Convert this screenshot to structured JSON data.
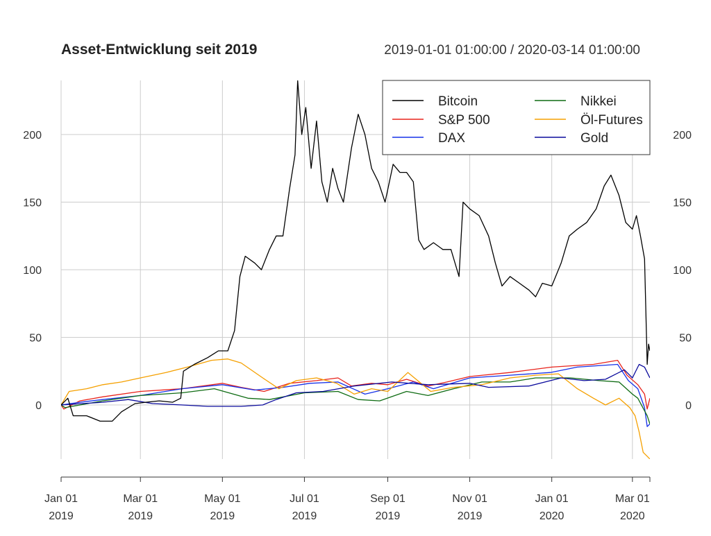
{
  "chart_data": {
    "type": "line",
    "title": "Asset-Entwicklung seit 2019",
    "subtitle": "2019-01-01 01:00:00 / 2020-03-14 01:00:00",
    "xlabel": "",
    "ylabel": "",
    "xlim": [
      "2019-01-01",
      "2020-03-14"
    ],
    "ylim": [
      -40,
      240
    ],
    "y_ticks": [
      0,
      50,
      100,
      150,
      200
    ],
    "y_tick_labels": [
      "0",
      "50",
      "100",
      "150",
      "200"
    ],
    "x_ticks": [
      {
        "date": "2019-01-01",
        "line1": "Jan 01",
        "line2": "2019"
      },
      {
        "date": "2019-03-01",
        "line1": "Mar 01",
        "line2": "2019"
      },
      {
        "date": "2019-05-01",
        "line1": "May 01",
        "line2": "2019"
      },
      {
        "date": "2019-07-01",
        "line1": "Jul 01",
        "line2": "2019"
      },
      {
        "date": "2019-09-01",
        "line1": "Sep 01",
        "line2": "2019"
      },
      {
        "date": "2019-11-01",
        "line1": "Nov 01",
        "line2": "2019"
      },
      {
        "date": "2020-01-01",
        "line1": "Jan 01",
        "line2": "2020"
      },
      {
        "date": "2020-03-01",
        "line1": "Mar 01",
        "line2": "2020"
      }
    ],
    "grid": true,
    "legend_position": "top-right",
    "series": [
      {
        "name": "Bitcoin",
        "color": "#000000",
        "points": [
          [
            "2019-01-01",
            0
          ],
          [
            "2019-01-06",
            5
          ],
          [
            "2019-01-10",
            -8
          ],
          [
            "2019-01-20",
            -8
          ],
          [
            "2019-01-30",
            -12
          ],
          [
            "2019-02-08",
            -12
          ],
          [
            "2019-02-15",
            -5
          ],
          [
            "2019-02-25",
            1
          ],
          [
            "2019-03-05",
            2
          ],
          [
            "2019-03-15",
            3
          ],
          [
            "2019-03-25",
            2
          ],
          [
            "2019-03-31",
            5
          ],
          [
            "2019-04-02",
            25
          ],
          [
            "2019-04-10",
            30
          ],
          [
            "2019-04-20",
            35
          ],
          [
            "2019-04-28",
            40
          ],
          [
            "2019-05-05",
            40
          ],
          [
            "2019-05-10",
            55
          ],
          [
            "2019-05-14",
            95
          ],
          [
            "2019-05-18",
            110
          ],
          [
            "2019-05-25",
            105
          ],
          [
            "2019-05-30",
            100
          ],
          [
            "2019-06-05",
            115
          ],
          [
            "2019-06-10",
            125
          ],
          [
            "2019-06-15",
            125
          ],
          [
            "2019-06-20",
            160
          ],
          [
            "2019-06-24",
            185
          ],
          [
            "2019-06-26",
            240
          ],
          [
            "2019-06-29",
            200
          ],
          [
            "2019-07-02",
            220
          ],
          [
            "2019-07-06",
            175
          ],
          [
            "2019-07-10",
            210
          ],
          [
            "2019-07-14",
            165
          ],
          [
            "2019-07-18",
            150
          ],
          [
            "2019-07-22",
            175
          ],
          [
            "2019-07-26",
            160
          ],
          [
            "2019-07-30",
            150
          ],
          [
            "2019-08-05",
            190
          ],
          [
            "2019-08-10",
            215
          ],
          [
            "2019-08-15",
            200
          ],
          [
            "2019-08-20",
            175
          ],
          [
            "2019-08-25",
            165
          ],
          [
            "2019-08-30",
            150
          ],
          [
            "2019-09-05",
            178
          ],
          [
            "2019-09-10",
            172
          ],
          [
            "2019-09-15",
            172
          ],
          [
            "2019-09-20",
            165
          ],
          [
            "2019-09-24",
            122
          ],
          [
            "2019-09-28",
            115
          ],
          [
            "2019-10-05",
            120
          ],
          [
            "2019-10-12",
            115
          ],
          [
            "2019-10-18",
            115
          ],
          [
            "2019-10-24",
            95
          ],
          [
            "2019-10-27",
            150
          ],
          [
            "2019-11-01",
            145
          ],
          [
            "2019-11-08",
            140
          ],
          [
            "2019-11-15",
            125
          ],
          [
            "2019-11-20",
            105
          ],
          [
            "2019-11-25",
            88
          ],
          [
            "2019-12-01",
            95
          ],
          [
            "2019-12-08",
            90
          ],
          [
            "2019-12-15",
            85
          ],
          [
            "2019-12-20",
            80
          ],
          [
            "2019-12-25",
            90
          ],
          [
            "2020-01-01",
            88
          ],
          [
            "2020-01-08",
            105
          ],
          [
            "2020-01-14",
            125
          ],
          [
            "2020-01-20",
            130
          ],
          [
            "2020-01-27",
            135
          ],
          [
            "2020-02-03",
            145
          ],
          [
            "2020-02-09",
            162
          ],
          [
            "2020-02-14",
            170
          ],
          [
            "2020-02-20",
            155
          ],
          [
            "2020-02-25",
            135
          ],
          [
            "2020-03-01",
            130
          ],
          [
            "2020-03-04",
            140
          ],
          [
            "2020-03-07",
            125
          ],
          [
            "2020-03-10",
            108
          ],
          [
            "2020-03-12",
            30
          ],
          [
            "2020-03-13",
            45
          ],
          [
            "2020-03-14",
            40
          ]
        ]
      },
      {
        "name": "S&P 500",
        "color": "#e8221a",
        "points": [
          [
            "2019-01-01",
            0
          ],
          [
            "2019-01-03",
            -3
          ],
          [
            "2019-01-15",
            3
          ],
          [
            "2019-02-01",
            6
          ],
          [
            "2019-03-01",
            10
          ],
          [
            "2019-04-01",
            12
          ],
          [
            "2019-05-01",
            16
          ],
          [
            "2019-05-15",
            13
          ],
          [
            "2019-06-01",
            10
          ],
          [
            "2019-06-20",
            16
          ],
          [
            "2019-07-10",
            18
          ],
          [
            "2019-07-26",
            20
          ],
          [
            "2019-08-05",
            14
          ],
          [
            "2019-08-20",
            16
          ],
          [
            "2019-09-01",
            15
          ],
          [
            "2019-09-15",
            19
          ],
          [
            "2019-10-01",
            14
          ],
          [
            "2019-10-15",
            17
          ],
          [
            "2019-11-01",
            21
          ],
          [
            "2019-12-01",
            24
          ],
          [
            "2020-01-01",
            28
          ],
          [
            "2020-02-01",
            30
          ],
          [
            "2020-02-19",
            33
          ],
          [
            "2020-02-26",
            22
          ],
          [
            "2020-03-05",
            15
          ],
          [
            "2020-03-10",
            8
          ],
          [
            "2020-03-12",
            -3
          ],
          [
            "2020-03-14",
            5
          ]
        ]
      },
      {
        "name": "DAX",
        "color": "#1530e8",
        "points": [
          [
            "2019-01-01",
            0
          ],
          [
            "2019-01-15",
            2
          ],
          [
            "2019-02-01",
            4
          ],
          [
            "2019-03-01",
            7
          ],
          [
            "2019-04-01",
            12
          ],
          [
            "2019-05-01",
            15
          ],
          [
            "2019-05-25",
            11
          ],
          [
            "2019-06-15",
            13
          ],
          [
            "2019-07-05",
            16
          ],
          [
            "2019-07-26",
            17
          ],
          [
            "2019-08-15",
            8
          ],
          [
            "2019-09-01",
            12
          ],
          [
            "2019-09-20",
            17
          ],
          [
            "2019-10-05",
            12
          ],
          [
            "2019-11-01",
            20
          ],
          [
            "2019-12-01",
            22
          ],
          [
            "2019-12-31",
            24
          ],
          [
            "2020-01-20",
            28
          ],
          [
            "2020-02-19",
            30
          ],
          [
            "2020-02-27",
            18
          ],
          [
            "2020-03-05",
            12
          ],
          [
            "2020-03-10",
            -2
          ],
          [
            "2020-03-12",
            -16
          ],
          [
            "2020-03-14",
            -14
          ]
        ]
      },
      {
        "name": "Nikkei",
        "color": "#0e6b12",
        "points": [
          [
            "2019-01-01",
            0
          ],
          [
            "2019-01-04",
            -2
          ],
          [
            "2019-02-01",
            3
          ],
          [
            "2019-03-01",
            7
          ],
          [
            "2019-04-01",
            9
          ],
          [
            "2019-04-25",
            12
          ],
          [
            "2019-05-20",
            5
          ],
          [
            "2019-06-05",
            4
          ],
          [
            "2019-07-01",
            9
          ],
          [
            "2019-07-26",
            10
          ],
          [
            "2019-08-10",
            4
          ],
          [
            "2019-08-26",
            3
          ],
          [
            "2019-09-15",
            10
          ],
          [
            "2019-10-01",
            7
          ],
          [
            "2019-10-20",
            12
          ],
          [
            "2019-11-10",
            17
          ],
          [
            "2019-12-01",
            17
          ],
          [
            "2019-12-20",
            20
          ],
          [
            "2020-01-15",
            20
          ],
          [
            "2020-02-05",
            18
          ],
          [
            "2020-02-20",
            17
          ],
          [
            "2020-03-01",
            8
          ],
          [
            "2020-03-05",
            5
          ],
          [
            "2020-03-12",
            -8
          ],
          [
            "2020-03-14",
            -14
          ]
        ]
      },
      {
        "name": "Öl-Futures",
        "color": "#f5a000",
        "points": [
          [
            "2019-01-01",
            0
          ],
          [
            "2019-01-07",
            10
          ],
          [
            "2019-01-20",
            12
          ],
          [
            "2019-02-01",
            15
          ],
          [
            "2019-02-15",
            17
          ],
          [
            "2019-03-01",
            20
          ],
          [
            "2019-03-20",
            24
          ],
          [
            "2019-04-05",
            28
          ],
          [
            "2019-04-23",
            33
          ],
          [
            "2019-05-05",
            34
          ],
          [
            "2019-05-15",
            31
          ],
          [
            "2019-05-31",
            20
          ],
          [
            "2019-06-12",
            12
          ],
          [
            "2019-06-25",
            18
          ],
          [
            "2019-07-10",
            20
          ],
          [
            "2019-07-25",
            16
          ],
          [
            "2019-08-07",
            8
          ],
          [
            "2019-08-20",
            12
          ],
          [
            "2019-09-01",
            10
          ],
          [
            "2019-09-16",
            24
          ],
          [
            "2019-10-03",
            10
          ],
          [
            "2019-10-20",
            13
          ],
          [
            "2019-11-10",
            15
          ],
          [
            "2019-12-01",
            20
          ],
          [
            "2019-12-20",
            22
          ],
          [
            "2020-01-06",
            23
          ],
          [
            "2020-01-20",
            12
          ],
          [
            "2020-02-01",
            5
          ],
          [
            "2020-02-10",
            0
          ],
          [
            "2020-02-20",
            5
          ],
          [
            "2020-02-28",
            -2
          ],
          [
            "2020-03-03",
            -8
          ],
          [
            "2020-03-06",
            -20
          ],
          [
            "2020-03-09",
            -35
          ],
          [
            "2020-03-12",
            -38
          ],
          [
            "2020-03-14",
            -40
          ]
        ]
      },
      {
        "name": "Gold",
        "color": "#0a0a9c",
        "points": [
          [
            "2019-01-01",
            0
          ],
          [
            "2019-02-01",
            2
          ],
          [
            "2019-02-20",
            4
          ],
          [
            "2019-03-10",
            1
          ],
          [
            "2019-04-01",
            0
          ],
          [
            "2019-04-20",
            -1
          ],
          [
            "2019-05-15",
            -1
          ],
          [
            "2019-05-31",
            0
          ],
          [
            "2019-06-10",
            4
          ],
          [
            "2019-06-25",
            9
          ],
          [
            "2019-07-15",
            10
          ],
          [
            "2019-08-07",
            14
          ],
          [
            "2019-09-04",
            17
          ],
          [
            "2019-10-01",
            15
          ],
          [
            "2019-11-01",
            16
          ],
          [
            "2019-11-15",
            13
          ],
          [
            "2019-12-15",
            14
          ],
          [
            "2020-01-08",
            20
          ],
          [
            "2020-01-25",
            18
          ],
          [
            "2020-02-10",
            19
          ],
          [
            "2020-02-24",
            26
          ],
          [
            "2020-03-01",
            20
          ],
          [
            "2020-03-06",
            30
          ],
          [
            "2020-03-10",
            28
          ],
          [
            "2020-03-14",
            20
          ]
        ]
      }
    ]
  }
}
